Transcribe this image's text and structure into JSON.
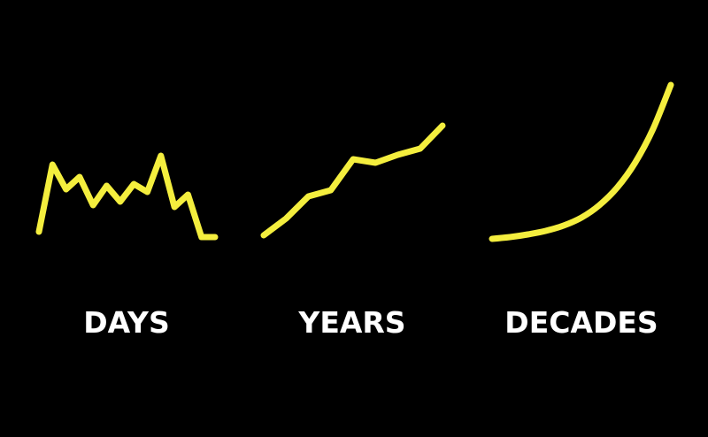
{
  "line_color": "#f4ee3e",
  "background_color": "#000000",
  "label_color": "#ffffff",
  "chart_data": [
    {
      "type": "line",
      "title": "DAYS",
      "x": [
        0,
        1,
        2,
        3,
        4,
        5,
        6,
        7,
        8,
        9,
        10,
        11,
        12,
        13
      ],
      "values": [
        10,
        86,
        58,
        72,
        40,
        62,
        44,
        64,
        55,
        96,
        38,
        52,
        4,
        4
      ],
      "ylim": [
        0,
        180
      ]
    },
    {
      "type": "line",
      "title": "YEARS",
      "x": [
        0,
        1,
        2,
        3,
        4,
        5,
        6,
        7,
        8
      ],
      "values": [
        6,
        25,
        50,
        57,
        92,
        88,
        97,
        104,
        130
      ],
      "ylim": [
        0,
        180
      ]
    },
    {
      "type": "line",
      "title": "DECADES",
      "x": [
        0,
        0.1,
        0.2,
        0.3,
        0.4,
        0.5,
        0.6,
        0.7,
        0.8,
        0.9,
        1.0
      ],
      "values": [
        2,
        4,
        7,
        11,
        17,
        26,
        40,
        60,
        88,
        126,
        176
      ],
      "ylim": [
        0,
        180
      ]
    }
  ]
}
